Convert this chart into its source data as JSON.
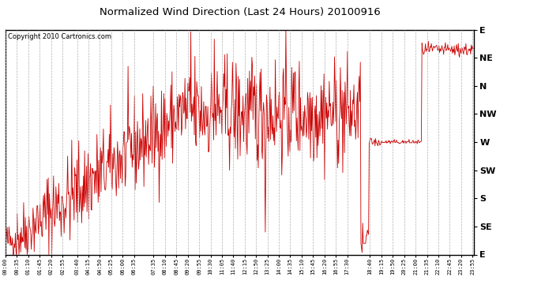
{
  "title": "Normalized Wind Direction (Last 24 Hours) 20100916",
  "copyright_text": "Copyright 2010 Cartronics.com",
  "line_color": "#cc0000",
  "background_color": "#ffffff",
  "grid_color": "#b0b0b0",
  "ytick_labels": [
    "E",
    "NE",
    "N",
    "NW",
    "W",
    "SW",
    "S",
    "SE",
    "E"
  ],
  "ytick_values": [
    1.0,
    0.875,
    0.75,
    0.625,
    0.5,
    0.375,
    0.25,
    0.125,
    0.0
  ],
  "xtick_labels": [
    "00:00",
    "00:35",
    "01:10",
    "01:45",
    "02:20",
    "02:55",
    "03:40",
    "04:15",
    "04:50",
    "05:25",
    "06:00",
    "06:35",
    "07:35",
    "08:10",
    "08:45",
    "09:20",
    "09:55",
    "10:30",
    "11:05",
    "11:40",
    "12:15",
    "12:50",
    "13:25",
    "14:00",
    "14:35",
    "15:10",
    "15:45",
    "16:20",
    "16:55",
    "17:30",
    "18:40",
    "19:15",
    "19:50",
    "20:25",
    "21:00",
    "21:35",
    "22:10",
    "22:45",
    "23:20",
    "23:55"
  ],
  "figsize": [
    6.9,
    3.75
  ],
  "dpi": 100,
  "seed": 42,
  "n_points": 800
}
